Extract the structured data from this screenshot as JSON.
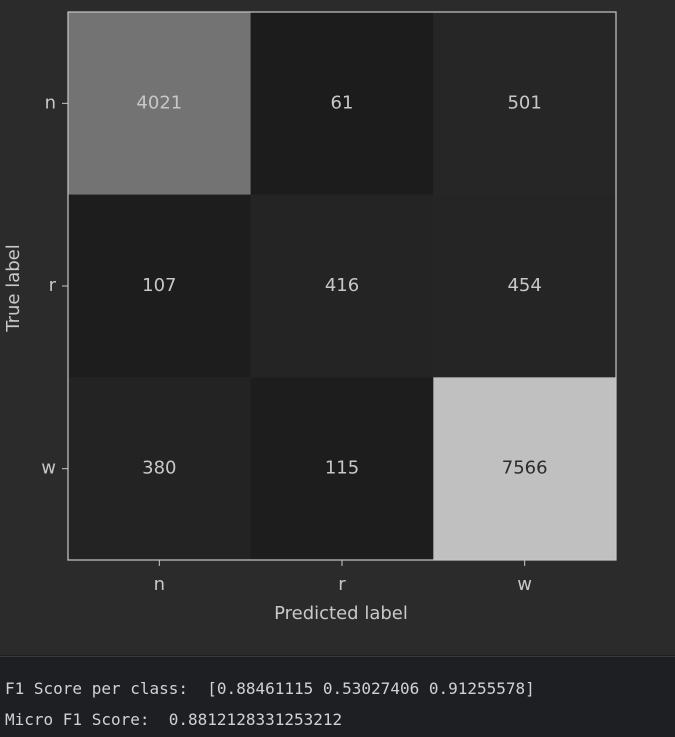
{
  "chart_data": {
    "type": "heatmap",
    "xlabel": "Predicted label",
    "ylabel": "True label",
    "x_categories": [
      "n",
      "r",
      "w"
    ],
    "y_categories": [
      "n",
      "r",
      "w"
    ],
    "values": [
      [
        4021,
        61,
        501
      ],
      [
        107,
        416,
        454
      ],
      [
        380,
        115,
        7566
      ]
    ],
    "cmap": [
      "#1c1c1c",
      "#c0c0c0"
    ]
  },
  "output": {
    "lines": [
      "F1 Score per class:  [0.88461115 0.53027406 0.91255578]",
      "Micro F1 Score:  0.8812128331253212"
    ]
  }
}
